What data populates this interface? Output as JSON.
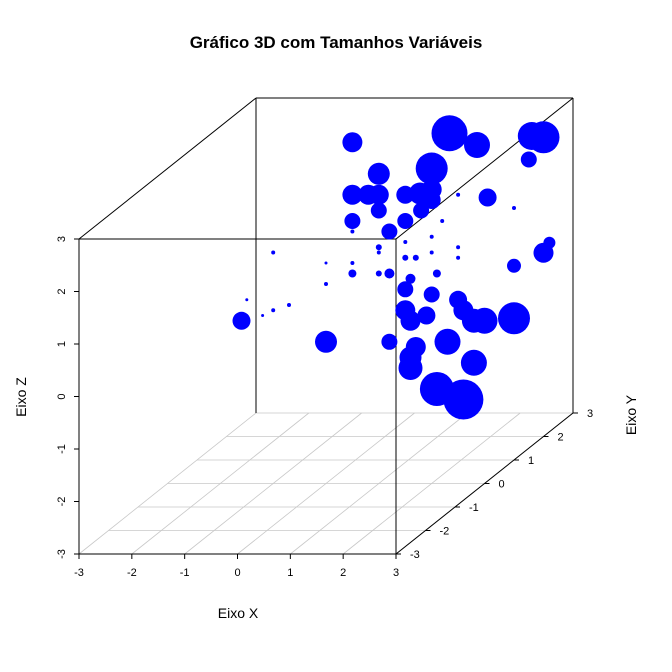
{
  "chart_data": {
    "type": "scatter3d",
    "title": "Gráfico 3D com Tamanhos Variáveis",
    "xlabel": "Eixo X",
    "ylabel": "Eixo Y",
    "zlabel": "Eixo Z",
    "xlim": [
      -3,
      3
    ],
    "ylim": [
      -3,
      3
    ],
    "zlim": [
      -3,
      3
    ],
    "x_ticks": [
      "-3",
      "-2",
      "-1",
      "0",
      "1",
      "2",
      "3"
    ],
    "y_ticks": [
      "-3",
      "-2",
      "-1",
      "0",
      "1",
      "2",
      "3"
    ],
    "z_ticks": [
      "-3",
      "-2",
      "-1",
      "0",
      "1",
      "2",
      "3"
    ],
    "grid": "x-y floor",
    "point_color": "#0000ff",
    "size_note_units": "relative",
    "points": [
      {
        "x": 0.5,
        "y": 0.0,
        "z": 3.5,
        "s": 1.0
      },
      {
        "x": 1.5,
        "y": 1.5,
        "z": 3.0,
        "s": 1.8
      },
      {
        "x": 2.3,
        "y": 1.0,
        "z": 3.0,
        "s": 1.3
      },
      {
        "x": 2.5,
        "y": 2.5,
        "z": 2.5,
        "s": 1.4
      },
      {
        "x": 3.0,
        "y": 2.0,
        "z": 2.7,
        "s": 1.6
      },
      {
        "x": 2.0,
        "y": 0.0,
        "z": 3.0,
        "s": 1.6
      },
      {
        "x": 3.0,
        "y": 1.5,
        "z": 2.5,
        "s": 0.8
      },
      {
        "x": 1.0,
        "y": 0.0,
        "z": 2.9,
        "s": 1.1
      },
      {
        "x": 0.8,
        "y": 0.0,
        "z": 2.5,
        "s": 1.0
      },
      {
        "x": 0.5,
        "y": 0.0,
        "z": 2.5,
        "s": 1.0
      },
      {
        "x": 1.0,
        "y": 0.0,
        "z": 2.5,
        "s": 1.0
      },
      {
        "x": 1.5,
        "y": 0.0,
        "z": 2.5,
        "s": 0.9
      },
      {
        "x": 1.5,
        "y": 0.5,
        "z": 2.3,
        "s": 1.1
      },
      {
        "x": 2.0,
        "y": 0.0,
        "z": 2.6,
        "s": 1.0
      },
      {
        "x": 2.0,
        "y": 0.0,
        "z": 2.4,
        "s": 0.9
      },
      {
        "x": 2.5,
        "y": 1.0,
        "z": 2.0,
        "s": 0.9
      },
      {
        "x": 0.5,
        "y": 0.0,
        "z": 2.0,
        "s": 0.8
      },
      {
        "x": 1.0,
        "y": 0.0,
        "z": 2.2,
        "s": 0.8
      },
      {
        "x": 1.5,
        "y": 0.0,
        "z": 2.0,
        "s": 0.8
      },
      {
        "x": 1.8,
        "y": 0.0,
        "z": 2.2,
        "s": 0.8
      },
      {
        "x": 1.2,
        "y": 0.0,
        "z": 1.8,
        "s": 0.8
      },
      {
        "x": 2.2,
        "y": 0.0,
        "z": 2.0,
        "s": 0.2
      },
      {
        "x": 2.5,
        "y": 0.0,
        "z": 2.5,
        "s": 0.2
      },
      {
        "x": 3.0,
        "y": 1.0,
        "z": 1.8,
        "s": 0.2
      },
      {
        "x": 0.5,
        "y": 0.0,
        "z": 1.8,
        "s": 0.2
      },
      {
        "x": 1.0,
        "y": 0.0,
        "z": 1.5,
        "s": 0.3
      },
      {
        "x": 1.5,
        "y": 0.0,
        "z": 1.6,
        "s": 0.2
      },
      {
        "x": 2.0,
        "y": 0.0,
        "z": 1.7,
        "s": 0.2
      },
      {
        "x": 2.5,
        "y": 0.0,
        "z": 1.5,
        "s": 0.2
      },
      {
        "x": 0.5,
        "y": 0.0,
        "z": 1.2,
        "s": 0.2
      },
      {
        "x": 1.0,
        "y": 0.0,
        "z": 1.4,
        "s": 0.2
      },
      {
        "x": 1.5,
        "y": 0.0,
        "z": 1.3,
        "s": 0.3
      },
      {
        "x": 2.0,
        "y": 0.0,
        "z": 1.4,
        "s": 0.2
      },
      {
        "x": 2.5,
        "y": 0.0,
        "z": 1.3,
        "s": 0.2
      },
      {
        "x": 1.7,
        "y": 0.0,
        "z": 1.3,
        "s": 0.3
      },
      {
        "x": -1.0,
        "y": 0.0,
        "z": 1.4,
        "s": 0.2
      },
      {
        "x": 0.0,
        "y": 0.0,
        "z": 1.2,
        "s": 0.15
      },
      {
        "x": 0.5,
        "y": 0.0,
        "z": 1.0,
        "s": 0.4
      },
      {
        "x": 1.0,
        "y": 0.0,
        "z": 1.0,
        "s": 0.3
      },
      {
        "x": 1.2,
        "y": 0.0,
        "z": 1.0,
        "s": 0.5
      },
      {
        "x": 1.6,
        "y": 0.0,
        "z": 0.9,
        "s": 0.5
      },
      {
        "x": 2.1,
        "y": 0.0,
        "z": 1.0,
        "s": 0.4
      },
      {
        "x": 0.0,
        "y": 0.0,
        "z": 0.8,
        "s": 0.2
      },
      {
        "x": -1.5,
        "y": 0.0,
        "z": 0.5,
        "s": 0.15
      },
      {
        "x": 1.5,
        "y": 0.0,
        "z": 0.7,
        "s": 0.8
      },
      {
        "x": 2.0,
        "y": 0.0,
        "z": 0.6,
        "s": 0.8
      },
      {
        "x": 2.5,
        "y": 0.0,
        "z": 0.5,
        "s": 0.9
      },
      {
        "x": 3.0,
        "y": 1.0,
        "z": 0.7,
        "s": 0.7
      },
      {
        "x": 3.0,
        "y": 2.0,
        "z": 0.5,
        "s": 1.0
      },
      {
        "x": 3.0,
        "y": 2.2,
        "z": 0.6,
        "s": 0.6
      },
      {
        "x": -0.7,
        "y": 0.0,
        "z": 0.4,
        "s": 0.2
      },
      {
        "x": -1.0,
        "y": 0.0,
        "z": 0.3,
        "s": 0.2
      },
      {
        "x": -1.2,
        "y": 0.0,
        "z": 0.2,
        "s": 0.15
      },
      {
        "x": -1.6,
        "y": 0.0,
        "z": 0.1,
        "s": 0.9
      },
      {
        "x": 1.5,
        "y": 0.0,
        "z": 0.3,
        "s": 1.0
      },
      {
        "x": 1.9,
        "y": 0.0,
        "z": 0.2,
        "s": 0.9
      },
      {
        "x": 2.6,
        "y": 0.0,
        "z": 0.3,
        "s": 1.0
      },
      {
        "x": 2.8,
        "y": 0.0,
        "z": 0.1,
        "s": 1.2
      },
      {
        "x": 3.0,
        "y": 0.0,
        "z": 0.1,
        "s": 1.3
      },
      {
        "x": 1.6,
        "y": 0.0,
        "z": 0.1,
        "s": 1.0
      },
      {
        "x": 0.0,
        "y": 0.0,
        "z": -0.3,
        "s": 1.1
      },
      {
        "x": 1.2,
        "y": 0.0,
        "z": -0.3,
        "s": 0.8
      },
      {
        "x": 1.7,
        "y": 0.0,
        "z": -0.4,
        "s": 1.0
      },
      {
        "x": 2.3,
        "y": 0.0,
        "z": -0.3,
        "s": 1.3
      },
      {
        "x": 3.0,
        "y": 1.0,
        "z": -0.3,
        "s": 1.6
      },
      {
        "x": 1.6,
        "y": 0.0,
        "z": -0.6,
        "s": 1.1
      },
      {
        "x": 1.6,
        "y": 0.0,
        "z": -0.8,
        "s": 1.2
      },
      {
        "x": 2.8,
        "y": 0.0,
        "z": -0.7,
        "s": 1.3
      },
      {
        "x": 2.1,
        "y": 0.0,
        "z": -1.2,
        "s": 1.7
      },
      {
        "x": 2.6,
        "y": 0.0,
        "z": -1.4,
        "s": 2.0
      }
    ]
  }
}
